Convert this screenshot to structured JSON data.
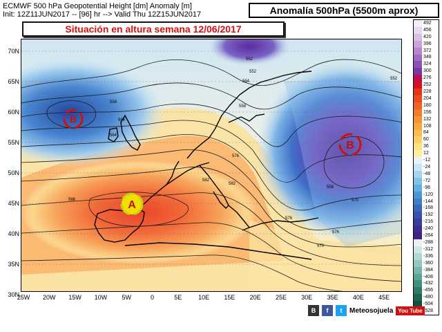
{
  "header": {
    "line1": "ECMWF 500 hPa Geopotential Height [dm] Anomaly [m]",
    "line2": "Init: 12Z11JUN2017 -- [96] hr --> Valid Thu 12Z15JUN2017"
  },
  "title_box": "Anomalía 500hPa (5500m aprox)",
  "situation_title": "Situación en altura semana 12/06/2017",
  "map": {
    "lat_labels": [
      "70N",
      "65N",
      "60N",
      "55N",
      "50N",
      "45N",
      "40N",
      "35N",
      "30N"
    ],
    "lon_labels": [
      "25W",
      "20W",
      "15W",
      "10W",
      "5W",
      "0",
      "5E",
      "10E",
      "15E",
      "20E",
      "25E",
      "30E",
      "35E",
      "40E",
      "45E"
    ],
    "contour_labels": [
      "552",
      "552",
      "564",
      "558",
      "576",
      "582",
      "588",
      "582",
      "570",
      "576",
      "576",
      "558",
      "558",
      "564",
      "564",
      "570",
      "552"
    ],
    "systems": [
      {
        "letter": "B",
        "type": "low"
      },
      {
        "letter": "A",
        "type": "high"
      },
      {
        "letter": "B",
        "type": "low"
      }
    ],
    "colors": {
      "low_symbol": "#d01010",
      "high_symbol": "#c8d010"
    }
  },
  "legend": {
    "labels": [
      "492",
      "456",
      "420",
      "396",
      "372",
      "348",
      "324",
      "300",
      "276",
      "252",
      "228",
      "204",
      "180",
      "156",
      "132",
      "108",
      "84",
      "60",
      "36",
      "12",
      "-12",
      "-24",
      "-48",
      "-72",
      "-96",
      "-120",
      "-144",
      "-168",
      "-192",
      "-216",
      "-240",
      "-264",
      "-288",
      "-312",
      "-336",
      "-360",
      "-384",
      "-408",
      "-432",
      "-456",
      "-480",
      "-504",
      "-528"
    ]
  },
  "footer": {
    "brand": "Meteosojuela",
    "youtube": "You Tube",
    "icons": [
      "blogger-icon",
      "facebook-icon",
      "twitter-icon"
    ]
  }
}
